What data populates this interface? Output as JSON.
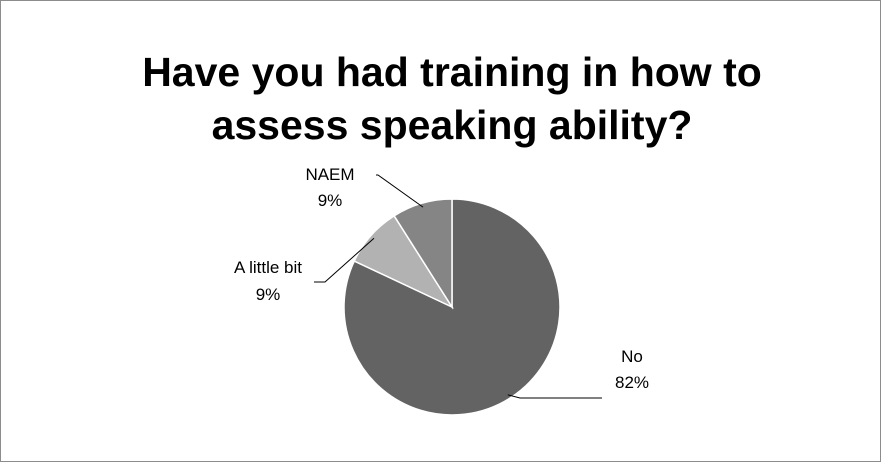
{
  "chart_data": {
    "type": "pie",
    "title": "Have you had training in how to assess speaking ability?",
    "categories": [
      "No",
      "A little bit",
      "NAEM"
    ],
    "values": [
      82,
      9,
      9
    ],
    "value_labels": [
      "82%",
      "9%",
      "9%"
    ],
    "colors": [
      "#636363",
      "#b2b2b2",
      "#858585"
    ]
  }
}
